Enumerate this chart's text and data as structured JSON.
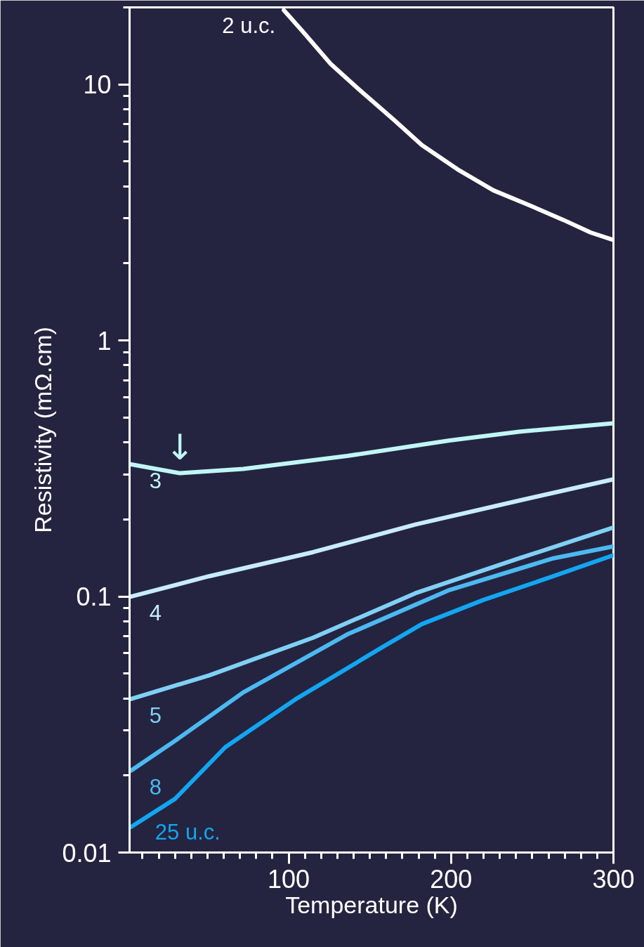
{
  "chart_data": {
    "type": "line",
    "xlabel": "Temperature (K)",
    "ylabel": "Resistivity (mΩ.cm)",
    "log": "y",
    "grid": false,
    "marker": "none",
    "line_style": "solid",
    "xlim": [
      2,
      300
    ],
    "ylim": [
      0.01,
      20
    ],
    "xticks": [
      {
        "value": 10,
        "label": null
      },
      {
        "value": 20,
        "label": null
      },
      {
        "value": 30,
        "label": null
      },
      {
        "value": 40,
        "label": null
      },
      {
        "value": 50,
        "label": null
      },
      {
        "value": 60,
        "label": null
      },
      {
        "value": 70,
        "label": null
      },
      {
        "value": 80,
        "label": null
      },
      {
        "value": 90,
        "label": null
      },
      100,
      {
        "value": 110,
        "label": null
      },
      {
        "value": 120,
        "label": null
      },
      {
        "value": 130,
        "label": null
      },
      {
        "value": 140,
        "label": null
      },
      {
        "value": 150,
        "label": null
      },
      {
        "value": 160,
        "label": null
      },
      {
        "value": 170,
        "label": null
      },
      {
        "value": 180,
        "label": null
      },
      {
        "value": 190,
        "label": null
      },
      200,
      {
        "value": 210,
        "label": null
      },
      {
        "value": 220,
        "label": null
      },
      {
        "value": 230,
        "label": null
      },
      {
        "value": 240,
        "label": null
      },
      {
        "value": 250,
        "label": null
      },
      {
        "value": 260,
        "label": null
      },
      {
        "value": 270,
        "label": null
      },
      {
        "value": 280,
        "label": null
      },
      {
        "value": 290,
        "label": null
      },
      300
    ],
    "yticks": [
      0.01,
      {
        "value": 0.02,
        "label": null
      },
      {
        "value": 0.03,
        "label": null
      },
      {
        "value": 0.04,
        "label": null
      },
      {
        "value": 0.05,
        "label": null
      },
      {
        "value": 0.06,
        "label": null
      },
      {
        "value": 0.07,
        "label": null
      },
      {
        "value": 0.08,
        "label": null
      },
      {
        "value": 0.09,
        "label": null
      },
      0.1,
      {
        "value": 0.2,
        "label": null
      },
      {
        "value": 0.3,
        "label": null
      },
      {
        "value": 0.4,
        "label": null
      },
      {
        "value": 0.5,
        "label": null
      },
      {
        "value": 0.6,
        "label": null
      },
      {
        "value": 0.7,
        "label": null
      },
      {
        "value": 0.8,
        "label": null
      },
      {
        "value": 0.9,
        "label": null
      },
      1,
      {
        "value": 2,
        "label": null
      },
      {
        "value": 3,
        "label": null
      },
      {
        "value": 4,
        "label": null
      },
      {
        "value": 5,
        "label": null
      },
      {
        "value": 6,
        "label": null
      },
      {
        "value": 7,
        "label": null
      },
      {
        "value": 8,
        "label": null
      },
      {
        "value": 9,
        "label": null
      },
      10,
      {
        "value": 20,
        "label": null
      }
    ],
    "series": [
      {
        "name": "2 u.c.",
        "color": "#ffffff",
        "x": [
          97,
          109,
          126,
          143,
          165,
          182,
          204,
          226,
          247,
          269,
          286,
          299
        ],
        "values": [
          19.5,
          16.0,
          12.0,
          9.6,
          7.25,
          5.8,
          4.66,
          3.86,
          3.4,
          2.96,
          2.64,
          2.48
        ]
      },
      {
        "name": "3",
        "color": "#c0f6f6",
        "x": [
          3,
          33,
          72,
          136,
          199,
          242,
          300
        ],
        "values": [
          0.328,
          0.303,
          0.315,
          0.354,
          0.407,
          0.44,
          0.475
        ]
      },
      {
        "name": "4",
        "color": "#c8ecfa",
        "x": [
          3,
          51,
          115,
          178,
          242,
          300
        ],
        "values": [
          0.1,
          0.12,
          0.149,
          0.191,
          0.237,
          0.287
        ]
      },
      {
        "name": "5",
        "color": "#80d0f5",
        "x": [
          3,
          51,
          115,
          178,
          242,
          300
        ],
        "values": [
          0.0398,
          0.0492,
          0.069,
          0.103,
          0.141,
          0.186
        ]
      },
      {
        "name": "8",
        "color": "#4cb9f2",
        "x": [
          3,
          30,
          72,
          136,
          199,
          263,
          300
        ],
        "values": [
          0.0209,
          0.0273,
          0.0422,
          0.0711,
          0.106,
          0.141,
          0.157
        ]
      },
      {
        "name": "25 u.c.",
        "color": "#12a6f2",
        "x": [
          3,
          30,
          61,
          104,
          157,
          182,
          220,
          263,
          300
        ],
        "values": [
          0.0126,
          0.0162,
          0.0258,
          0.0396,
          0.063,
          0.078,
          0.097,
          0.12,
          0.145
        ]
      }
    ],
    "annotations": [
      {
        "text": "↓",
        "x": 33,
        "y": 0.303
      }
    ]
  }
}
